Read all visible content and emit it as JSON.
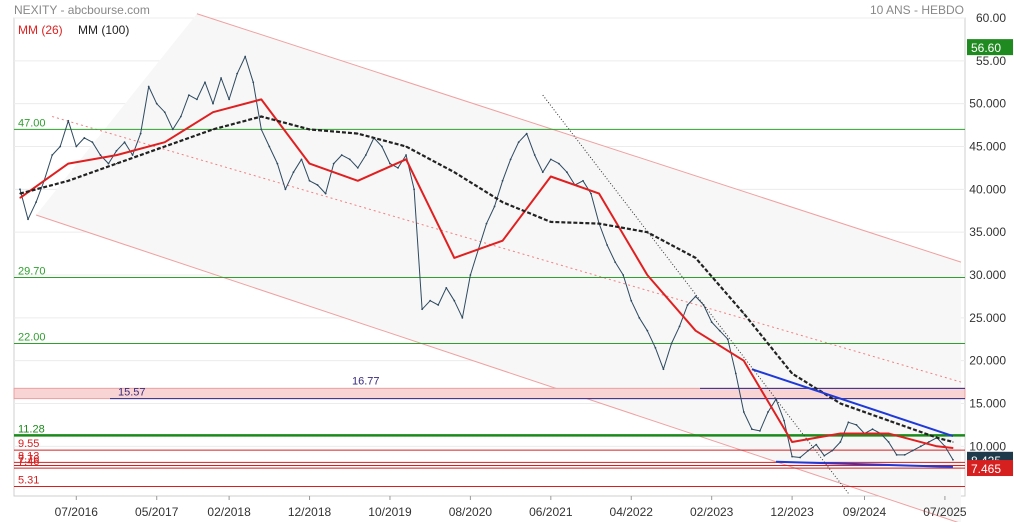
{
  "header": {
    "source": "NEXITY - abcbourse.com",
    "period": "10 ANS - HEBDO",
    "legend": [
      {
        "label": "MM (26)",
        "color": "#e02020"
      },
      {
        "label": "MM (100)",
        "color": "#222222"
      }
    ]
  },
  "chart_data": {
    "type": "line",
    "title": "NEXITY",
    "ylim": [
      4.2,
      60
    ],
    "grid": true,
    "y_ticks": [
      "60.00",
      "55.00",
      "50.000",
      "45.000",
      "40.000",
      "35.000",
      "30.000",
      "25.000",
      "20.000",
      "15.000",
      "10.000"
    ],
    "y_tick_values": [
      60,
      55,
      50,
      45,
      40,
      35,
      30,
      25,
      20,
      15,
      10
    ],
    "x_tick_labels": [
      "07/2016",
      "05/2017",
      "02/2018",
      "12/2018",
      "10/2019",
      "08/2020",
      "06/2021",
      "04/2022",
      "02/2023",
      "12/2023",
      "09/2024",
      "07/2025"
    ],
    "x_tick_dates": [
      "2016-07",
      "2017-05",
      "2018-02",
      "2018-12",
      "2019-10",
      "2020-08",
      "2021-06",
      "2022-04",
      "2023-02",
      "2023-12",
      "2024-09",
      "2025-07"
    ],
    "x_range": [
      "2015-12",
      "2025-09"
    ],
    "last_value": {
      "label": "8.425",
      "value": 8.425
    },
    "levels": [
      {
        "label": "47.00",
        "value": 47.0,
        "color": "#2ea02e"
      },
      {
        "label": "29.70",
        "value": 29.7,
        "color": "#2ea02e"
      },
      {
        "label": "22.00",
        "value": 22.0,
        "color": "#2ea02e"
      },
      {
        "label": "11.28",
        "value": 11.28,
        "color": "#1a8a1a"
      },
      {
        "label": "9.55",
        "value": 9.55,
        "color": "#d62020"
      },
      {
        "label": "8.13",
        "value": 8.13,
        "color": "#d62020"
      },
      {
        "label": "7.76",
        "value": 7.76,
        "color": "#d62020"
      },
      {
        "label": "7.46",
        "value": 7.46,
        "color": "#d62020"
      },
      {
        "label": "5.31",
        "value": 5.31,
        "color": "#d62020"
      }
    ],
    "resistance_zone": {
      "low": 15.57,
      "high": 16.77,
      "low_label": "15.57",
      "high_label": "16.77"
    },
    "axis_badges": [
      {
        "label": "56.60",
        "value": 56.6,
        "color": "#1f8a1f"
      },
      {
        "label": "8.425",
        "value": 8.425,
        "color": "#1f3a4a"
      },
      {
        "label": "7.465",
        "value": 7.465,
        "color": "#d62020"
      }
    ],
    "series": [
      {
        "name": "NEXITY",
        "color": "#2e4a60",
        "x": [
          "2015-12",
          "2016-01",
          "2016-02",
          "2016-03",
          "2016-04",
          "2016-05",
          "2016-06",
          "2016-07",
          "2016-08",
          "2016-09",
          "2016-10",
          "2016-11",
          "2016-12",
          "2017-01",
          "2017-02",
          "2017-03",
          "2017-04",
          "2017-05",
          "2017-06",
          "2017-07",
          "2017-08",
          "2017-09",
          "2017-10",
          "2017-11",
          "2017-12",
          "2018-01",
          "2018-02",
          "2018-03",
          "2018-04",
          "2018-05",
          "2018-06",
          "2018-07",
          "2018-08",
          "2018-09",
          "2018-10",
          "2018-11",
          "2018-12",
          "2019-01",
          "2019-02",
          "2019-03",
          "2019-04",
          "2019-05",
          "2019-06",
          "2019-07",
          "2019-08",
          "2019-09",
          "2019-10",
          "2019-11",
          "2019-12",
          "2020-01",
          "2020-02",
          "2020-03",
          "2020-04",
          "2020-05",
          "2020-06",
          "2020-07",
          "2020-08",
          "2020-09",
          "2020-10",
          "2020-11",
          "2020-12",
          "2021-01",
          "2021-02",
          "2021-03",
          "2021-04",
          "2021-05",
          "2021-06",
          "2021-07",
          "2021-08",
          "2021-09",
          "2021-10",
          "2021-11",
          "2021-12",
          "2022-01",
          "2022-02",
          "2022-03",
          "2022-04",
          "2022-05",
          "2022-06",
          "2022-07",
          "2022-08",
          "2022-09",
          "2022-10",
          "2022-11",
          "2022-12",
          "2023-01",
          "2023-02",
          "2023-03",
          "2023-04",
          "2023-05",
          "2023-06",
          "2023-07",
          "2023-08",
          "2023-09",
          "2023-10",
          "2023-11",
          "2023-12",
          "2024-01",
          "2024-02",
          "2024-03",
          "2024-04",
          "2024-05",
          "2024-06",
          "2024-07",
          "2024-08",
          "2024-09",
          "2024-10",
          "2024-11",
          "2024-12",
          "2025-01",
          "2025-02",
          "2025-03",
          "2025-04",
          "2025-05",
          "2025-06",
          "2025-07",
          "2025-08"
        ],
        "values": [
          40.0,
          36.5,
          38.5,
          41.0,
          44.0,
          45.0,
          48.0,
          45.0,
          46.0,
          45.5,
          44.0,
          43.0,
          44.5,
          45.5,
          44.0,
          46.5,
          52.0,
          50.0,
          49.0,
          47.0,
          48.5,
          51.0,
          50.5,
          52.5,
          50.0,
          53.0,
          50.5,
          53.5,
          55.5,
          52.5,
          47.0,
          45.0,
          43.0,
          40.0,
          42.0,
          43.5,
          41.0,
          40.5,
          39.5,
          43.0,
          44.0,
          43.5,
          42.5,
          44.0,
          46.0,
          45.0,
          43.0,
          42.5,
          44.0,
          40.0,
          26.0,
          27.0,
          26.5,
          28.5,
          27.0,
          25.0,
          30.0,
          33.0,
          36.0,
          38.0,
          41.0,
          43.5,
          45.5,
          46.5,
          44.0,
          42.0,
          43.5,
          43.0,
          42.0,
          40.5,
          41.0,
          39.5,
          36.0,
          33.5,
          31.5,
          30.0,
          27.0,
          25.0,
          23.5,
          21.5,
          19.0,
          22.0,
          24.0,
          26.5,
          27.5,
          26.5,
          24.5,
          23.5,
          22.5,
          18.5,
          14.0,
          12.0,
          11.8,
          14.0,
          15.5,
          13.0,
          8.8,
          8.7,
          9.5,
          10.2,
          8.9,
          9.5,
          10.5,
          12.8,
          12.5,
          11.5,
          12.0,
          11.5,
          10.5,
          9.0,
          9.0,
          9.5,
          10.0,
          10.5,
          11.0,
          10.0,
          8.425
        ]
      },
      {
        "name": "MM (26)",
        "color": "#e02020",
        "x": [
          "2015-12",
          "2016-06",
          "2016-12",
          "2017-06",
          "2017-12",
          "2018-06",
          "2018-12",
          "2019-06",
          "2019-12",
          "2020-06",
          "2020-12",
          "2021-06",
          "2021-12",
          "2022-06",
          "2022-12",
          "2023-06",
          "2023-12",
          "2024-06",
          "2024-12",
          "2025-06",
          "2025-08"
        ],
        "values": [
          39.0,
          43.0,
          44.0,
          45.5,
          49.0,
          50.5,
          43.0,
          41.0,
          43.5,
          32.0,
          34.0,
          41.5,
          39.5,
          30.0,
          23.5,
          20.0,
          10.5,
          11.5,
          11.5,
          10.0,
          9.8
        ]
      },
      {
        "name": "MM (100)",
        "color": "#222222",
        "x": [
          "2015-12",
          "2016-06",
          "2016-12",
          "2017-06",
          "2017-12",
          "2018-06",
          "2018-12",
          "2019-06",
          "2019-12",
          "2020-06",
          "2020-12",
          "2021-06",
          "2021-12",
          "2022-06",
          "2022-12",
          "2023-06",
          "2023-12",
          "2024-06",
          "2024-12",
          "2025-06",
          "2025-08"
        ],
        "values": [
          39.5,
          41.0,
          43.0,
          45.0,
          47.0,
          48.5,
          47.0,
          46.5,
          45.0,
          42.0,
          38.5,
          36.2,
          36.0,
          35.0,
          32.0,
          25.5,
          18.5,
          15.0,
          13.0,
          11.0,
          10.5
        ]
      }
    ]
  }
}
